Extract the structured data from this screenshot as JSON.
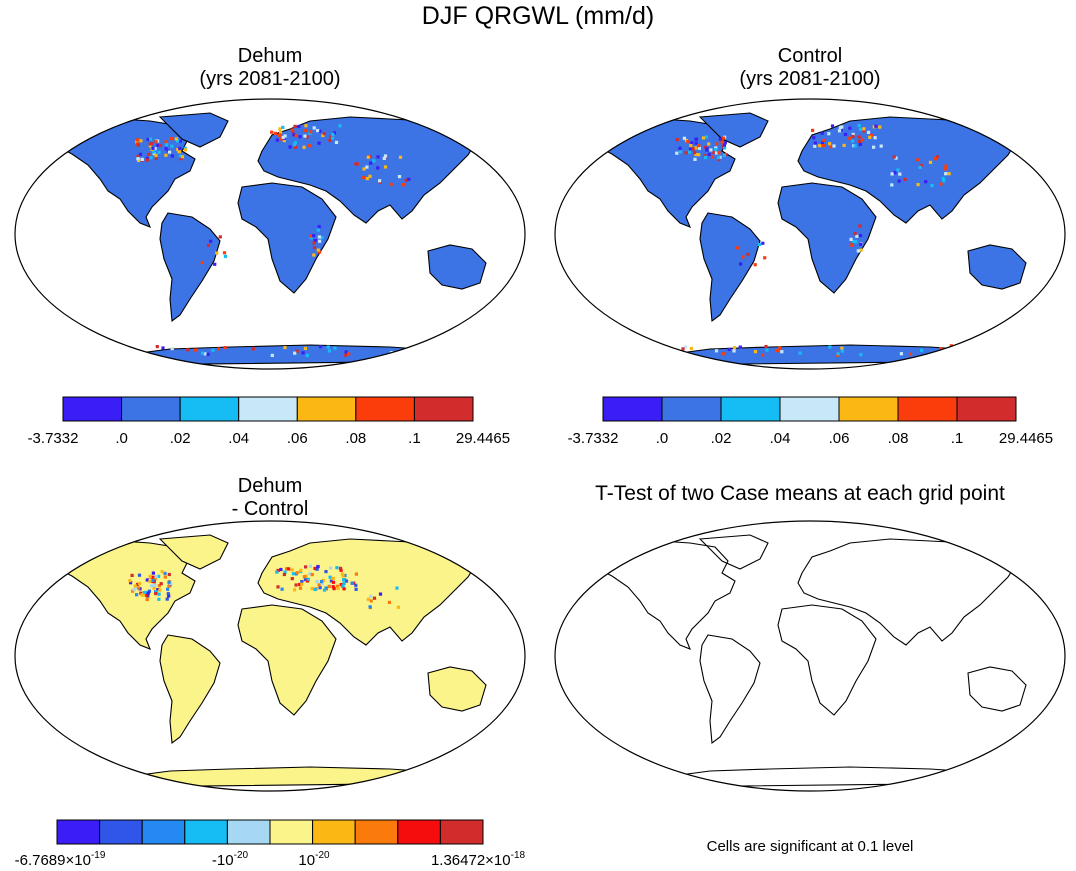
{
  "figure_title": "DJF QRGWL (mm/d)",
  "panels": {
    "top_left": {
      "line1": "Dehum",
      "line2": "(yrs 2081-2100)"
    },
    "top_right": {
      "line1": "Control",
      "line2": "(yrs 2081-2100)"
    },
    "bottom_left": {
      "line1": "Dehum",
      "line2": "- Control"
    },
    "bottom_right": {
      "title": "T-Test of two Case means at each grid point",
      "note": "Cells are significant at 0.1 level"
    }
  },
  "chart_data": [
    {
      "type": "heatmap",
      "title": "Dehum (yrs 2081-2100)",
      "projection": "Robinson",
      "dominant_land_value_bin": ".0 – .02",
      "colorbar": {
        "colors": [
          "#3a1ef5",
          "#3c74e6",
          "#16bdf5",
          "#c8e8f8",
          "#fbb714",
          "#fb3d0c",
          "#d32c2c"
        ],
        "labels": [
          "-3.7332",
          ".0",
          ".02",
          ".04",
          ".06",
          ".08",
          ".1",
          "29.4465"
        ]
      }
    },
    {
      "type": "heatmap",
      "title": "Control (yrs 2081-2100)",
      "projection": "Robinson",
      "dominant_land_value_bin": ".0 – .02",
      "colorbar": {
        "colors": [
          "#3a1ef5",
          "#3c74e6",
          "#16bdf5",
          "#c8e8f8",
          "#fbb714",
          "#fb3d0c",
          "#d32c2c"
        ],
        "labels": [
          "-3.7332",
          ".0",
          ".02",
          ".04",
          ".06",
          ".08",
          ".1",
          "29.4465"
        ]
      }
    },
    {
      "type": "heatmap",
      "title": "Dehum - Control",
      "projection": "Robinson",
      "dominant_land_value_bin": "-10^-20 – 10^-20",
      "colorbar": {
        "colors": [
          "#3a1ef5",
          "#2f56e8",
          "#2489f2",
          "#16bdf5",
          "#a6d8f3",
          "#fbf48a",
          "#fbb714",
          "#fb7a0c",
          "#f50c0c",
          "#d32c2c"
        ],
        "labels": [
          {
            "mantissa": "-6.7689×10",
            "exp": "-19"
          },
          {
            "mantissa": "-10",
            "exp": "-20"
          },
          {
            "mantissa": "10",
            "exp": "-20"
          },
          {
            "mantissa": "1.36472×10",
            "exp": "-18"
          }
        ]
      }
    },
    {
      "type": "heatmap",
      "title": "T-Test of two Case means at each grid point",
      "projection": "Robinson",
      "significant_cells": 0
    }
  ]
}
